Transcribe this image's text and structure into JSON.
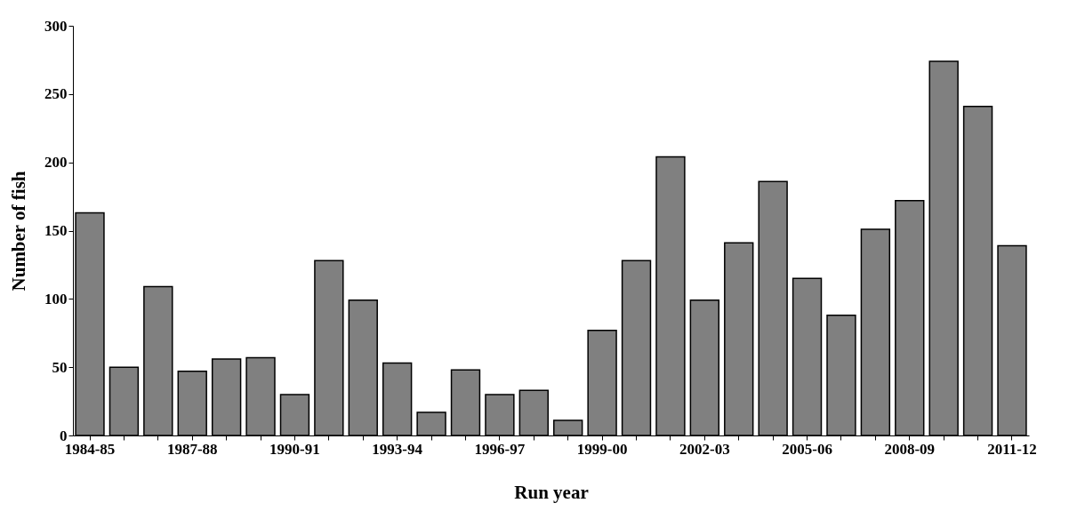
{
  "chart_data": {
    "type": "bar",
    "xlabel": "Run year",
    "ylabel": "Number of fish",
    "categories": [
      "1984-85",
      null,
      null,
      "1987-88",
      null,
      null,
      "1990-91",
      null,
      null,
      "1993-94",
      null,
      null,
      "1996-97",
      null,
      null,
      "1999-00",
      null,
      null,
      "2002-03",
      null,
      null,
      "2005-06",
      null,
      null,
      "2008-09",
      null,
      null,
      "2011-12"
    ],
    "values": [
      163,
      50,
      109,
      47,
      56,
      57,
      30,
      128,
      99,
      53,
      17,
      48,
      30,
      33,
      11,
      77,
      128,
      204,
      99,
      141,
      186,
      115,
      88,
      151,
      172,
      274,
      241,
      139
    ],
    "color": "#808080",
    "ylim": [
      0,
      300
    ],
    "yticks": [
      0,
      50,
      100,
      150,
      200,
      250,
      300
    ],
    "grid": false
  }
}
